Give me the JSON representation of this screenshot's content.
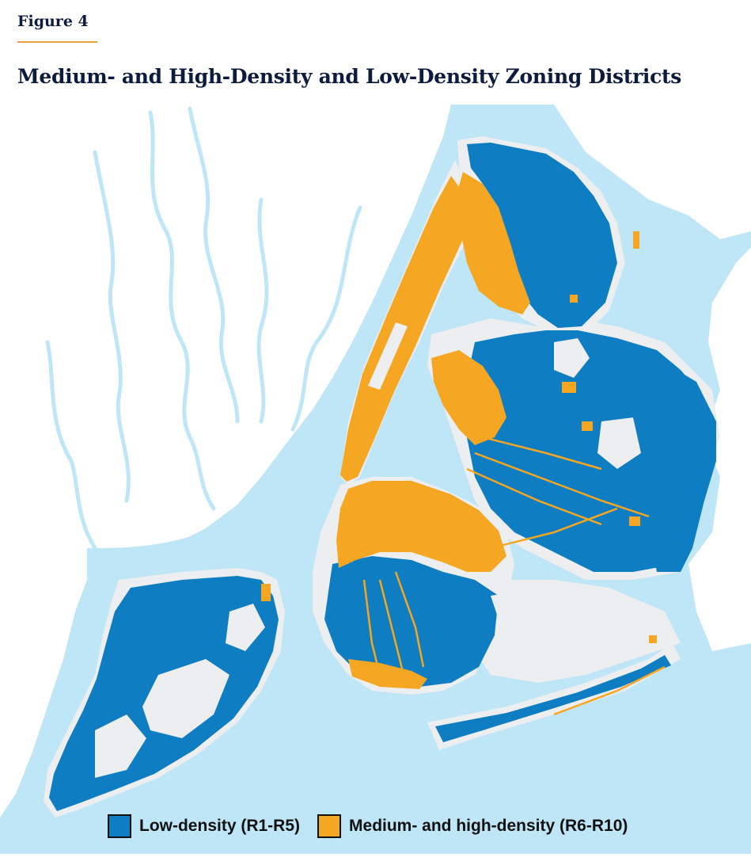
{
  "figure_label": "Figure 4",
  "title": "Medium- and High-Density and Low-Density Zoning Districts",
  "colors": {
    "water": "#bfe6f7",
    "land": "#eceeef",
    "low_density": "#0f7dc2",
    "medium_high_density": "#f5a623",
    "river": "#ffffff"
  },
  "legend": {
    "items": [
      {
        "label": "Low-density (R1-R5)",
        "color": "#0f7dc2"
      },
      {
        "label": "Medium- and high-density (R6-R10)",
        "color": "#f5a623"
      }
    ]
  }
}
